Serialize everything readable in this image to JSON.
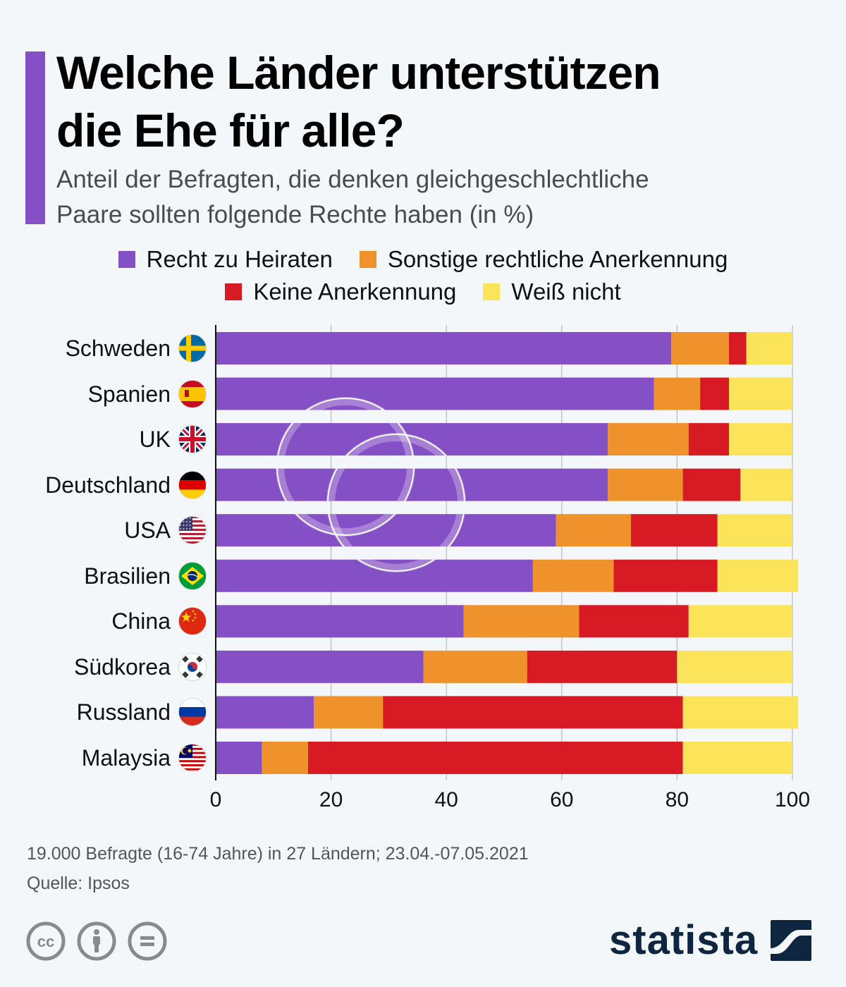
{
  "header": {
    "title_line1": "Welche Länder unterstützen",
    "title_line2": "die Ehe für alle?",
    "subtitle_line1": "Anteil der Befragten, die denken gleichgeschlechtliche",
    "subtitle_line2": "Paare sollten folgende Rechte haben (in %)"
  },
  "colors": {
    "accent": "#854fc6",
    "recht_zu_heiraten": "#854fc6",
    "sonstige": "#ef922b",
    "keine": "#d71a23",
    "weiss_nicht": "#fbe45a",
    "background": "#f4f7fa",
    "logo": "#0f2640"
  },
  "chart_data": {
    "type": "bar",
    "orientation": "horizontal",
    "stacked": true,
    "title": "Welche Länder unterstützen die Ehe für alle?",
    "subtitle": "Anteil der Befragten, die denken gleichgeschlechtliche Paare sollten folgende Rechte haben (in %)",
    "xlabel": "",
    "ylabel": "",
    "xlim": [
      0,
      100
    ],
    "xticks": [
      0,
      20,
      40,
      60,
      80,
      100
    ],
    "grid": true,
    "legend_position": "top-center",
    "categories": [
      "Schweden",
      "Spanien",
      "UK",
      "Deutschland",
      "USA",
      "Brasilien",
      "China",
      "Südkorea",
      "Russland",
      "Malaysia"
    ],
    "flags": [
      "flag-sweden-icon",
      "flag-spain-icon",
      "flag-uk-icon",
      "flag-germany-icon",
      "flag-usa-icon",
      "flag-brazil-icon",
      "flag-china-icon",
      "flag-south-korea-icon",
      "flag-russia-icon",
      "flag-malaysia-icon"
    ],
    "series": [
      {
        "name": "Recht zu Heiraten",
        "color": "#854fc6",
        "values": [
          79,
          76,
          68,
          68,
          59,
          55,
          43,
          36,
          17,
          8
        ]
      },
      {
        "name": "Sonstige rechtliche Anerkennung",
        "color": "#ef922b",
        "values": [
          10,
          8,
          14,
          13,
          13,
          14,
          20,
          18,
          12,
          8
        ]
      },
      {
        "name": "Keine Anerkennung",
        "color": "#d71a23",
        "values": [
          3,
          5,
          7,
          10,
          15,
          18,
          19,
          26,
          52,
          65
        ]
      },
      {
        "name": "Weiß nicht",
        "color": "#fbe45a",
        "values": [
          8,
          11,
          11,
          9,
          13,
          14,
          18,
          20,
          20,
          19
        ]
      }
    ]
  },
  "legend": {
    "row1": [
      {
        "label": "Recht zu Heiraten",
        "color": "#854fc6"
      },
      {
        "label": "Sonstige rechtliche Anerkennung",
        "color": "#ef922b"
      }
    ],
    "row2": [
      {
        "label": "Keine Anerkennung",
        "color": "#d71a23"
      },
      {
        "label": "Weiß nicht",
        "color": "#fbe45a"
      }
    ]
  },
  "footer": {
    "note": "19.000 Befragte (16-74 Jahre) in 27 Ländern; 23.04.-07.05.2021",
    "source": "Quelle: Ipsos",
    "license_icons": [
      "cc-icon",
      "attribution-icon",
      "no-derivatives-icon"
    ],
    "logo_text": "statista"
  }
}
